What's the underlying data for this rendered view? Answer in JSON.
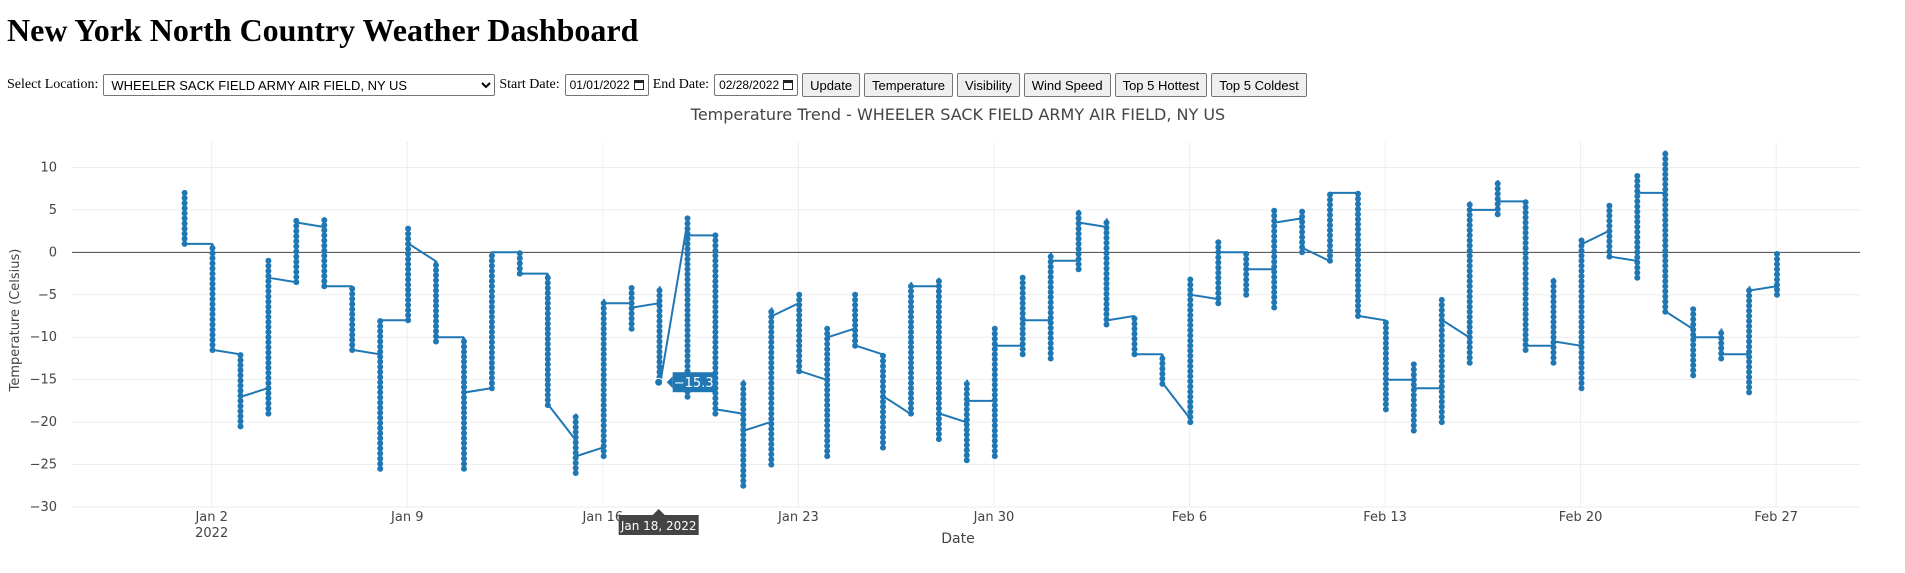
{
  "page": {
    "title": "New York North Country Weather Dashboard"
  },
  "controls": {
    "location_label": "Select Location:",
    "location_value": "WHEELER SACK FIELD ARMY AIR FIELD, NY US",
    "start_label": "Start Date:",
    "start_value": "01/01/2022",
    "end_label": "End Date:",
    "end_value": "02/28/2022",
    "buttons": {
      "update": "Update",
      "temperature": "Temperature",
      "visibility": "Visibility",
      "wind_speed": "Wind Speed",
      "top5_hottest": "Top 5 Hottest",
      "top5_coldest": "Top 5 Coldest"
    }
  },
  "modebar": {
    "icons": [
      "camera-icon",
      "zoom-icon",
      "pan-icon",
      "box-select-icon",
      "lasso-select-icon",
      "zoom-in-icon",
      "zoom-out-icon",
      "autoscale-icon",
      "reset-axes-icon",
      "spike-lines-icon",
      "hover-closest-icon",
      "hover-compare-icon",
      "plotly-logo-icon"
    ]
  },
  "chart_data": {
    "type": "line",
    "title": "Temperature Trend - WHEELER SACK FIELD ARMY AIR FIELD, NY US",
    "xlabel": "Date",
    "ylabel": "Temperature (Celsius)",
    "x_axis_type": "date",
    "xlim": [
      "2021-12-28",
      "2022-03-02"
    ],
    "ylim": [
      -30,
      13
    ],
    "x_ticks": [
      "2022-01-02",
      "2022-01-09",
      "2022-01-16",
      "2022-01-23",
      "2022-01-30",
      "2022-02-06",
      "2022-02-13",
      "2022-02-20",
      "2022-02-27"
    ],
    "x_tick_labels": [
      "Jan 2",
      "Jan 9",
      "Jan 16",
      "Jan 23",
      "Jan 30",
      "Feb 6",
      "Feb 13",
      "Feb 20",
      "Feb 27"
    ],
    "x_tick_sublabel": "2022",
    "y_ticks": [
      10,
      5,
      0,
      -5,
      -10,
      -15,
      -20,
      -25,
      -30
    ],
    "grid": true,
    "zero_line": true,
    "line_color": "#1f77b4",
    "tooltip": {
      "x": "2022-01-18",
      "y": -15.3,
      "x_label": "Jan 18, 2022",
      "y_label": "−15.3"
    },
    "days": [
      {
        "date": "2022-01-01",
        "min": 1,
        "max": 7,
        "first": 7,
        "last": 1
      },
      {
        "date": "2022-01-02",
        "min": -11.5,
        "max": 1,
        "first": 1,
        "last": -11.5
      },
      {
        "date": "2022-01-03",
        "min": -20.5,
        "max": -12,
        "first": -12,
        "last": -17
      },
      {
        "date": "2022-01-04",
        "min": -19,
        "max": -1,
        "first": -16,
        "last": -3
      },
      {
        "date": "2022-01-05",
        "min": -3.5,
        "max": 4,
        "first": -3.5,
        "last": 3.5
      },
      {
        "date": "2022-01-06",
        "min": -4,
        "max": 4,
        "first": 3,
        "last": -4
      },
      {
        "date": "2022-01-07",
        "min": -11.5,
        "max": -4,
        "first": -4,
        "last": -11.5
      },
      {
        "date": "2022-01-08",
        "min": -25.5,
        "max": -8,
        "first": -12,
        "last": -8
      },
      {
        "date": "2022-01-09",
        "min": -8,
        "max": 3,
        "first": -8,
        "last": 1
      },
      {
        "date": "2022-01-10",
        "min": -10.5,
        "max": -1,
        "first": -1,
        "last": -10
      },
      {
        "date": "2022-01-11",
        "min": -25.5,
        "max": -10,
        "first": -10,
        "last": -16.5
      },
      {
        "date": "2022-01-12",
        "min": -16,
        "max": 0,
        "first": -16,
        "last": 0
      },
      {
        "date": "2022-01-13",
        "min": -2.5,
        "max": 0,
        "first": 0,
        "last": -2.5
      },
      {
        "date": "2022-01-14",
        "min": -18,
        "max": -2.5,
        "first": -2.5,
        "last": -18
      },
      {
        "date": "2022-01-15",
        "min": -26,
        "max": -19,
        "first": -22,
        "last": -24
      },
      {
        "date": "2022-01-16",
        "min": -24,
        "max": -5.5,
        "first": -23,
        "last": -6
      },
      {
        "date": "2022-01-17",
        "min": -9,
        "max": -4,
        "first": -6,
        "last": -6.5
      },
      {
        "date": "2022-01-18",
        "min": -15.3,
        "max": -4,
        "first": -6,
        "last": -15.3
      },
      {
        "date": "2022-01-19",
        "min": -17,
        "max": 4,
        "first": 3,
        "last": 2
      },
      {
        "date": "2022-01-20",
        "min": -19,
        "max": 2,
        "first": 2,
        "last": -18.5
      },
      {
        "date": "2022-01-21",
        "min": -27.5,
        "max": -15,
        "first": -19,
        "last": -21
      },
      {
        "date": "2022-01-22",
        "min": -25,
        "max": -6.5,
        "first": -20,
        "last": -7.5
      },
      {
        "date": "2022-01-23",
        "min": -14,
        "max": -5,
        "first": -6,
        "last": -14
      },
      {
        "date": "2022-01-24",
        "min": -24,
        "max": -9,
        "first": -15,
        "last": -10
      },
      {
        "date": "2022-01-25",
        "min": -11,
        "max": -5,
        "first": -9,
        "last": -11
      },
      {
        "date": "2022-01-26",
        "min": -23,
        "max": -12,
        "first": -12,
        "last": -17
      },
      {
        "date": "2022-01-27",
        "min": -19,
        "max": -3.5,
        "first": -19,
        "last": -4
      },
      {
        "date": "2022-01-28",
        "min": -22,
        "max": -3,
        "first": -4,
        "last": -19
      },
      {
        "date": "2022-01-29",
        "min": -24.5,
        "max": -15,
        "first": -20,
        "last": -17.5
      },
      {
        "date": "2022-01-30",
        "min": -24,
        "max": -9,
        "first": -17.5,
        "last": -11
      },
      {
        "date": "2022-01-31",
        "min": -12,
        "max": -3,
        "first": -11,
        "last": -8
      },
      {
        "date": "2022-02-01",
        "min": -12.5,
        "max": 0,
        "first": -8,
        "last": -1
      },
      {
        "date": "2022-02-02",
        "min": -2,
        "max": 5,
        "first": -1,
        "last": 3.5
      },
      {
        "date": "2022-02-03",
        "min": -8.5,
        "max": 4,
        "first": 3,
        "last": -8
      },
      {
        "date": "2022-02-04",
        "min": -12,
        "max": -7.5,
        "first": -7.5,
        "last": -12
      },
      {
        "date": "2022-02-05",
        "min": -15.5,
        "max": -12,
        "first": -12,
        "last": -15.5
      },
      {
        "date": "2022-02-06",
        "min": -20,
        "max": -3,
        "first": -19.5,
        "last": -5
      },
      {
        "date": "2022-02-07",
        "min": -6,
        "max": 1.5,
        "first": -5.5,
        "last": 0
      },
      {
        "date": "2022-02-08",
        "min": -5,
        "max": 0,
        "first": 0,
        "last": -2
      },
      {
        "date": "2022-02-09",
        "min": -6.5,
        "max": 5,
        "first": -2,
        "last": 3.5
      },
      {
        "date": "2022-02-10",
        "min": 0,
        "max": 5,
        "first": 4,
        "last": 0.5
      },
      {
        "date": "2022-02-11",
        "min": -1,
        "max": 7,
        "first": -1,
        "last": 7
      },
      {
        "date": "2022-02-12",
        "min": -7.5,
        "max": 7,
        "first": 7,
        "last": -7.5
      },
      {
        "date": "2022-02-13",
        "min": -18.5,
        "max": -8,
        "first": -8,
        "last": -15
      },
      {
        "date": "2022-02-14",
        "min": -21,
        "max": -13,
        "first": -15,
        "last": -16
      },
      {
        "date": "2022-02-15",
        "min": -20,
        "max": -5.5,
        "first": -16,
        "last": -8
      },
      {
        "date": "2022-02-16",
        "min": -13,
        "max": 6,
        "first": -10,
        "last": 5
      },
      {
        "date": "2022-02-17",
        "min": 4.5,
        "max": 8.5,
        "first": 5,
        "last": 6
      },
      {
        "date": "2022-02-18",
        "min": -11.5,
        "max": 6,
        "first": 6,
        "last": -11
      },
      {
        "date": "2022-02-19",
        "min": -13,
        "max": -3,
        "first": -11,
        "last": -10.5
      },
      {
        "date": "2022-02-20",
        "min": -16,
        "max": 1.5,
        "first": -11,
        "last": 1
      },
      {
        "date": "2022-02-21",
        "min": -0.5,
        "max": 5.5,
        "first": 2.5,
        "last": -0.5
      },
      {
        "date": "2022-02-22",
        "min": -3,
        "max": 9,
        "first": -1,
        "last": 7
      },
      {
        "date": "2022-02-23",
        "min": -7,
        "max": 12,
        "first": 7,
        "last": -7
      },
      {
        "date": "2022-02-24",
        "min": -14.5,
        "max": -6.5,
        "first": -9,
        "last": -10
      },
      {
        "date": "2022-02-25",
        "min": -12.5,
        "max": -9,
        "first": -10,
        "last": -12
      },
      {
        "date": "2022-02-26",
        "min": -16.5,
        "max": -4,
        "first": -12,
        "last": -4.5
      },
      {
        "date": "2022-02-27",
        "min": -5,
        "max": 0,
        "first": -4,
        "last": -4
      }
    ]
  }
}
